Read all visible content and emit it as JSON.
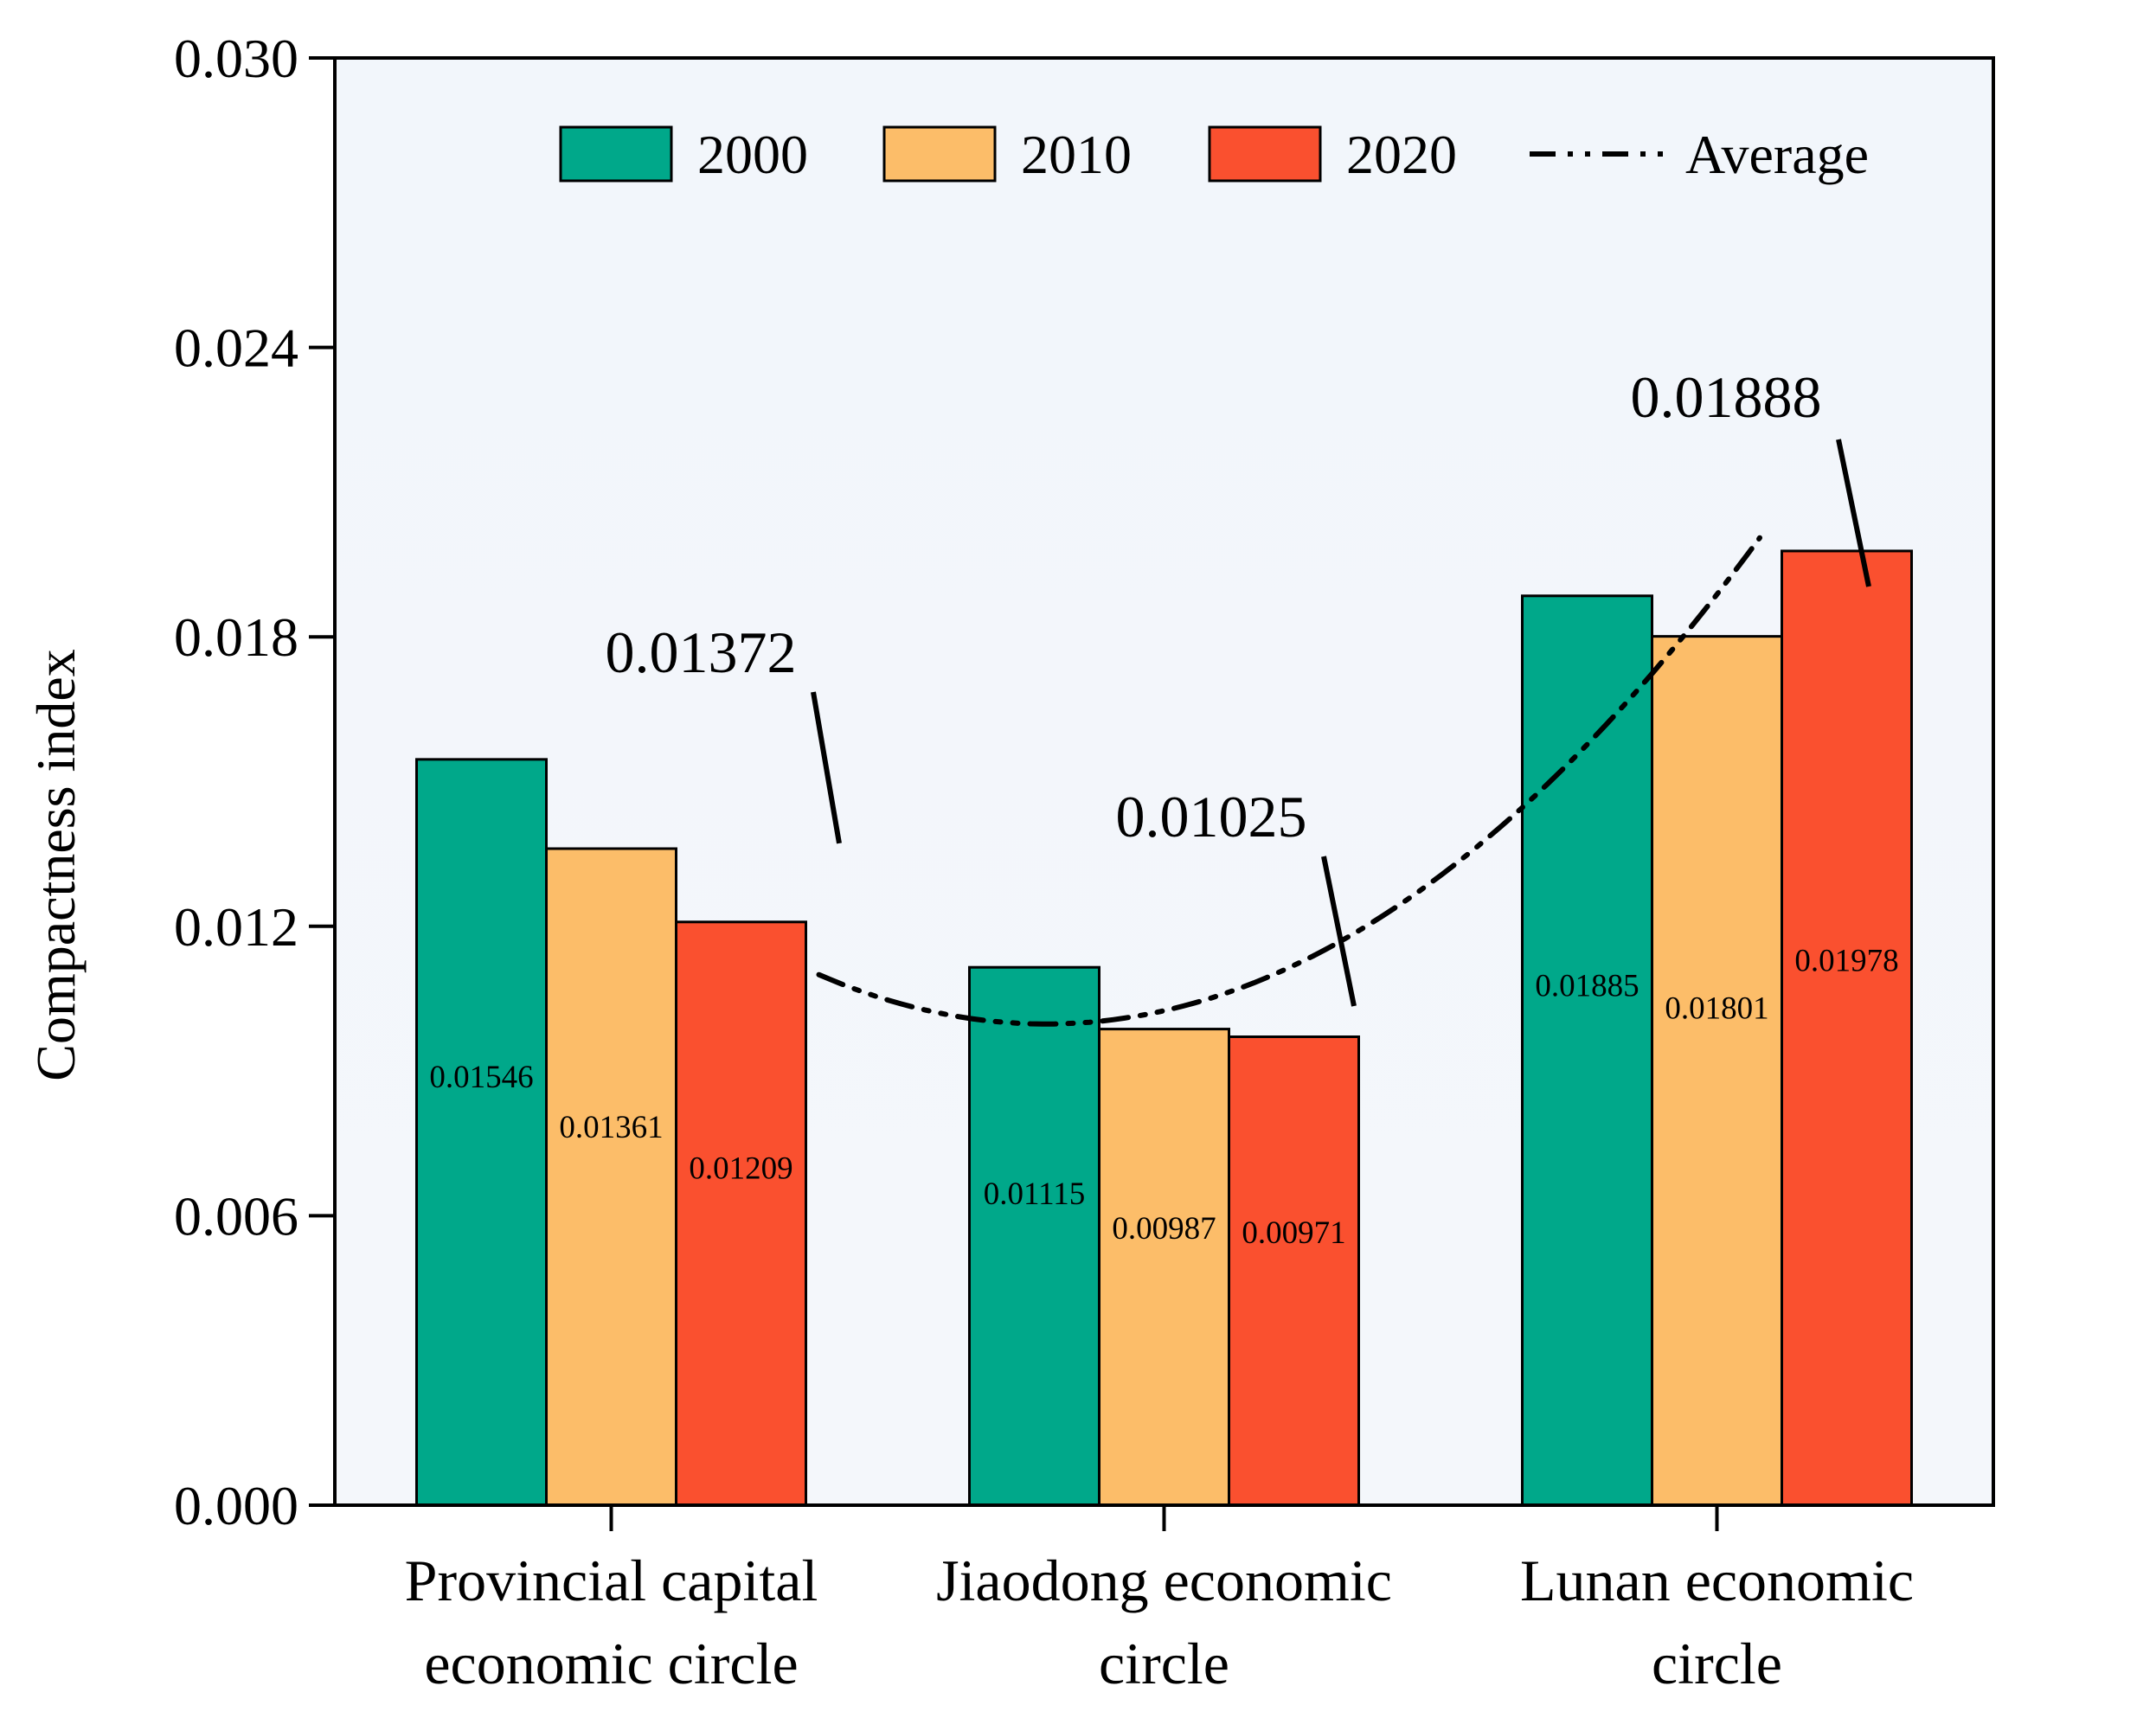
{
  "chart_data": {
    "type": "bar",
    "ylabel": "Compactness index",
    "ylim": [
      0,
      0.03
    ],
    "yticks": [
      "0.000",
      "0.006",
      "0.012",
      "0.018",
      "0.024",
      "0.030"
    ],
    "categories": [
      [
        "Provincial capital",
        "economic circle"
      ],
      [
        "Jiaodong economic",
        "circle"
      ],
      [
        "Lunan economic",
        "circle"
      ]
    ],
    "series": [
      {
        "name": "2000",
        "color": "#00a88a",
        "values": [
          0.01546,
          0.01115,
          0.01885
        ],
        "labels": [
          "0.01546",
          "0.01115",
          "0.01885"
        ]
      },
      {
        "name": "2010",
        "color": "#fcbd69",
        "values": [
          0.01361,
          0.00987,
          0.01801
        ],
        "labels": [
          "0.01361",
          "0.00987",
          "0.01801"
        ]
      },
      {
        "name": "2020",
        "color": "#fa502f",
        "values": [
          0.01209,
          0.00971,
          0.01978
        ],
        "labels": [
          "0.01209",
          "0.00971",
          "0.01978"
        ]
      }
    ],
    "average": {
      "name": "Average",
      "values": [
        0.01372,
        0.01025,
        0.01888
      ],
      "labels": [
        "0.01372",
        "0.01025",
        "0.01888"
      ],
      "style": "dash-dot"
    },
    "legend": "top-center",
    "plot_background": "#f2f6fb"
  }
}
